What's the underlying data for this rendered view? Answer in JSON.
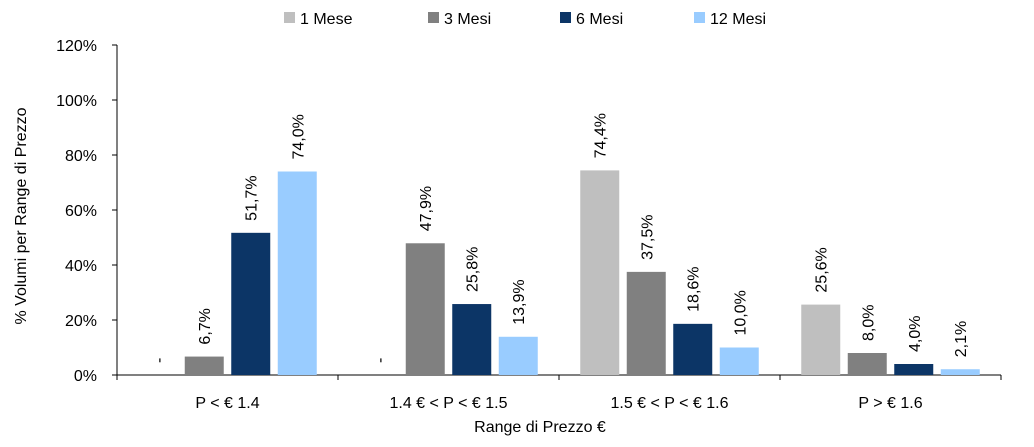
{
  "chart_data": {
    "type": "bar",
    "title": "",
    "xlabel": "Range di Prezzo €",
    "ylabel": "% Volumi per Range di Prezzo",
    "categories": [
      "P < € 1.4",
      "1.4 € < P < € 1.5",
      "1.5 € < P < € 1.6",
      "P > € 1.6"
    ],
    "series": [
      {
        "name": "1 Mese",
        "color": "#bfbfbf",
        "values": [
          null,
          null,
          74.4,
          25.6
        ],
        "labels": [
          "-",
          "-",
          "74,4%",
          "25,6%"
        ]
      },
      {
        "name": "3 Mesi",
        "color": "#808080",
        "values": [
          6.7,
          47.9,
          37.5,
          8.0
        ],
        "labels": [
          "6,7%",
          "47,9%",
          "37,5%",
          "8,0%"
        ]
      },
      {
        "name": "6 Mesi",
        "color": "#0c3566",
        "values": [
          51.7,
          25.8,
          18.6,
          4.0
        ],
        "labels": [
          "51,7%",
          "25,8%",
          "18,6%",
          "4,0%"
        ]
      },
      {
        "name": "12 Mesi",
        "color": "#99ccff",
        "values": [
          74.0,
          13.9,
          10.0,
          2.1
        ],
        "labels": [
          "74,0%",
          "13,9%",
          "10,0%",
          "2,1%"
        ]
      }
    ],
    "yticks": [
      "0%",
      "20%",
      "40%",
      "60%",
      "80%",
      "100%",
      "120%"
    ],
    "ylim": [
      0,
      120
    ],
    "grid": false,
    "legend_position": "top"
  }
}
